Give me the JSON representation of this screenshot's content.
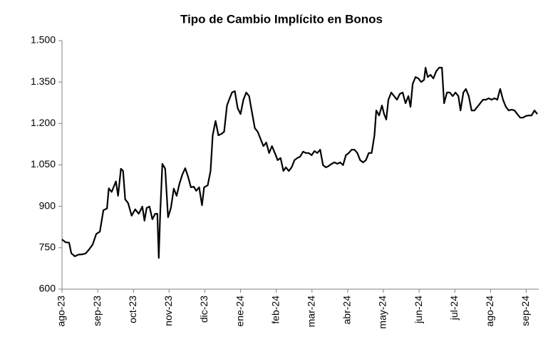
{
  "chart_data": {
    "type": "line",
    "title": "Tipo de Cambio Implícito en Bonos",
    "color": "#000000",
    "xlim": [
      0,
      13.35
    ],
    "xticks": [
      {
        "value": 0,
        "label": "ago-23"
      },
      {
        "value": 1,
        "label": "sep-23"
      },
      {
        "value": 2,
        "label": "oct-23"
      },
      {
        "value": 3,
        "label": "nov-23"
      },
      {
        "value": 4,
        "label": "dic-23"
      },
      {
        "value": 5,
        "label": "ene-24"
      },
      {
        "value": 6,
        "label": "feb-24"
      },
      {
        "value": 7,
        "label": "mar-24"
      },
      {
        "value": 8,
        "label": "abr-24"
      },
      {
        "value": 9,
        "label": "may-24"
      },
      {
        "value": 10,
        "label": "jun-24"
      },
      {
        "value": 11,
        "label": "jul-24"
      },
      {
        "value": 12,
        "label": "ago-24"
      },
      {
        "value": 13,
        "label": "sep-24"
      }
    ],
    "ylim": [
      600,
      1500
    ],
    "yticks": [
      600,
      750,
      900,
      {
        "value": 1050,
        "label": "1.050"
      },
      {
        "value": 1200,
        "label": "1.200"
      },
      {
        "value": 1350,
        "label": "1.350"
      },
      {
        "value": 1500,
        "label": "1.500"
      }
    ],
    "grid": false,
    "x": [
      0,
      0.1,
      0.2,
      0.26,
      0.36,
      0.46,
      0.56,
      0.66,
      0.76,
      0.86,
      0.96,
      1.06,
      1.16,
      1.26,
      1.31,
      1.39,
      1.45,
      1.51,
      1.57,
      1.65,
      1.71,
      1.77,
      1.85,
      1.95,
      2.05,
      2.15,
      2.25,
      2.31,
      2.37,
      2.45,
      2.53,
      2.61,
      2.67,
      2.71,
      2.75,
      2.81,
      2.89,
      2.97,
      3.05,
      3.13,
      3.21,
      3.29,
      3.37,
      3.45,
      3.53,
      3.61,
      3.69,
      3.76,
      3.84,
      3.92,
      3.98,
      4.08,
      4.16,
      4.22,
      4.3,
      4.38,
      4.46,
      4.54,
      4.62,
      4.68,
      4.76,
      4.84,
      4.92,
      5.0,
      5.08,
      5.16,
      5.24,
      5.32,
      5.4,
      5.48,
      5.56,
      5.64,
      5.72,
      5.8,
      5.88,
      5.96,
      6.04,
      6.12,
      6.2,
      6.27,
      6.35,
      6.43,
      6.51,
      6.59,
      6.67,
      6.75,
      6.83,
      6.91,
      6.99,
      7.07,
      7.15,
      7.23,
      7.31,
      7.39,
      7.47,
      7.55,
      7.63,
      7.71,
      7.79,
      7.87,
      7.95,
      8.03,
      8.11,
      8.19,
      8.27,
      8.35,
      8.43,
      8.51,
      8.59,
      8.67,
      8.75,
      8.8,
      8.88,
      8.96,
      9.02,
      9.08,
      9.14,
      9.22,
      9.3,
      9.38,
      9.46,
      9.54,
      9.62,
      9.7,
      9.76,
      9.82,
      9.9,
      9.98,
      10.06,
      10.14,
      10.18,
      10.24,
      10.32,
      10.4,
      10.48,
      10.56,
      10.64,
      10.7,
      10.78,
      10.86,
      10.94,
      11.02,
      11.1,
      11.16,
      11.24,
      11.31,
      11.39,
      11.47,
      11.55,
      11.63,
      11.71,
      11.79,
      11.87,
      11.95,
      12.03,
      12.11,
      12.19,
      12.27,
      12.35,
      12.43,
      12.51,
      12.59,
      12.67,
      12.75,
      12.83,
      12.91,
      12.99,
      13.07,
      13.15,
      13.23,
      13.31
    ],
    "values": [
      780,
      770,
      768,
      730,
      719,
      725,
      726,
      729,
      744,
      762,
      800,
      808,
      886,
      892,
      965,
      952,
      971,
      990,
      938,
      1036,
      1028,
      925,
      912,
      866,
      889,
      873,
      899,
      848,
      894,
      899,
      853,
      873,
      873,
      713,
      873,
      1054,
      1036,
      860,
      894,
      964,
      938,
      982,
      1015,
      1038,
      1007,
      969,
      971,
      956,
      969,
      904,
      969,
      976,
      1028,
      1157,
      1209,
      1157,
      1162,
      1170,
      1265,
      1286,
      1312,
      1317,
      1255,
      1234,
      1286,
      1312,
      1299,
      1240,
      1183,
      1170,
      1144,
      1118,
      1131,
      1093,
      1118,
      1093,
      1067,
      1075,
      1028,
      1041,
      1028,
      1041,
      1067,
      1075,
      1080,
      1098,
      1093,
      1093,
      1085,
      1100,
      1093,
      1105,
      1049,
      1041,
      1046,
      1054,
      1059,
      1054,
      1059,
      1049,
      1085,
      1093,
      1105,
      1105,
      1093,
      1067,
      1059,
      1067,
      1093,
      1093,
      1157,
      1247,
      1229,
      1265,
      1234,
      1214,
      1286,
      1312,
      1299,
      1286,
      1307,
      1312,
      1273,
      1299,
      1260,
      1343,
      1368,
      1363,
      1350,
      1358,
      1402,
      1368,
      1376,
      1363,
      1389,
      1402,
      1402,
      1273,
      1312,
      1312,
      1299,
      1312,
      1299,
      1247,
      1312,
      1325,
      1299,
      1247,
      1247,
      1260,
      1273,
      1286,
      1286,
      1291,
      1286,
      1291,
      1286,
      1325,
      1286,
      1260,
      1247,
      1250,
      1247,
      1234,
      1221,
      1221,
      1227,
      1229,
      1229,
      1247,
      1234
    ]
  }
}
